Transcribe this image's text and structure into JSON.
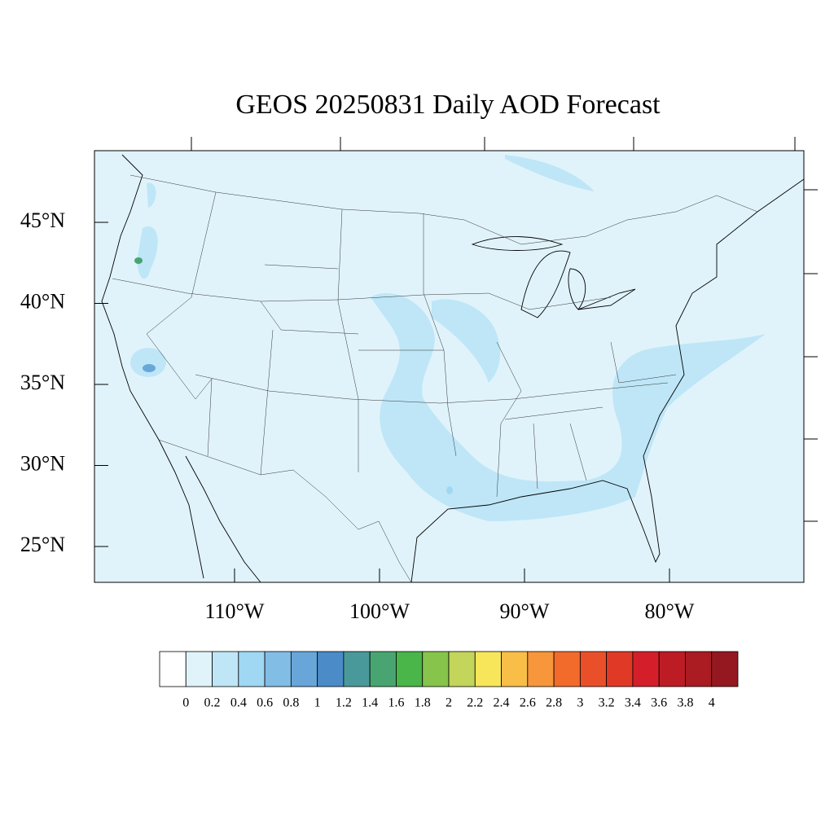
{
  "chart_data": {
    "type": "map",
    "title": "GEOS 20250831 Daily AOD Forecast",
    "xlim": [
      -119.66,
      -70.73
    ],
    "ylim": [
      22.79,
      49.42
    ],
    "xticks": [
      {
        "value": -110,
        "label": "110°W"
      },
      {
        "value": -100,
        "label": "100°W"
      },
      {
        "value": -90,
        "label": "90°W"
      },
      {
        "value": -80,
        "label": "80°W"
      }
    ],
    "yticks": [
      {
        "value": 45,
        "label": "45°N"
      },
      {
        "value": 40,
        "label": "40°N"
      },
      {
        "value": 35,
        "label": "35°N"
      },
      {
        "value": 30,
        "label": "30°N"
      },
      {
        "value": 25,
        "label": "25°N"
      }
    ],
    "colorbar": {
      "levels": [
        0,
        0.2,
        0.4,
        0.6,
        0.8,
        1,
        1.2,
        1.4,
        1.6,
        1.8,
        2,
        2.2,
        2.4,
        2.6,
        2.8,
        3,
        3.2,
        3.4,
        3.6,
        3.8,
        4
      ],
      "colors": [
        "#ffffff",
        "#e0f3fb",
        "#bee6f7",
        "#a0d8f3",
        "#82bde6",
        "#68a6da",
        "#4a8bc8",
        "#4a999a",
        "#48a572",
        "#4ab548",
        "#86c44b",
        "#c3d55a",
        "#f8e65a",
        "#f8be48",
        "#f7963b",
        "#f26b2a",
        "#e9502a",
        "#e03a27",
        "#d41f2a",
        "#bd1c25",
        "#aa1b22",
        "#951820"
      ]
    }
  }
}
